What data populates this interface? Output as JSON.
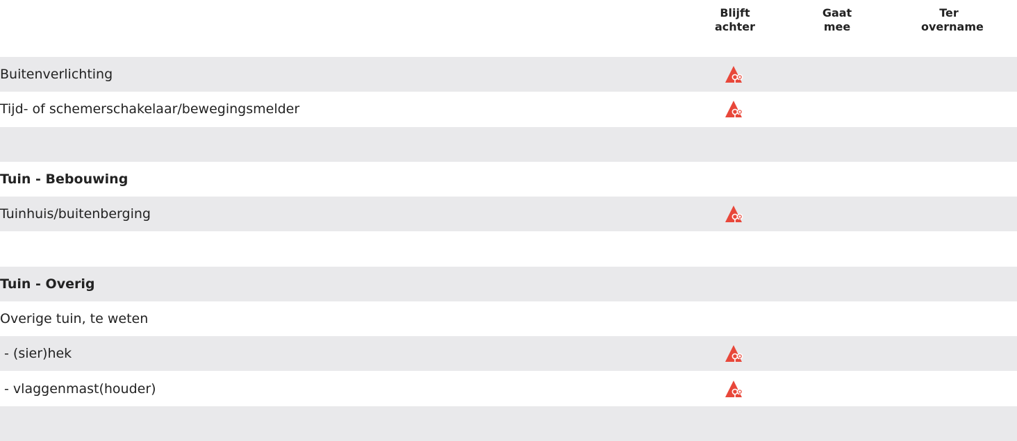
{
  "table": {
    "columns": [
      "Blijft achter",
      "Gaat mee",
      "Ter overname"
    ],
    "rows": [
      {
        "label": "Buitenverlichting",
        "heading": false,
        "checked": [
          true,
          false,
          false
        ]
      },
      {
        "label": "Tijd- of schemerschakelaar/bewegingsmelder",
        "heading": false,
        "checked": [
          true,
          false,
          false
        ]
      },
      {
        "label": null,
        "heading": false,
        "checked": [
          false,
          false,
          false
        ]
      },
      {
        "label": "Tuin - Bebouwing",
        "heading": true,
        "checked": [
          false,
          false,
          false
        ]
      },
      {
        "label": "Tuinhuis/buitenberging",
        "heading": false,
        "checked": [
          true,
          false,
          false
        ]
      },
      {
        "label": null,
        "heading": false,
        "checked": [
          false,
          false,
          false
        ]
      },
      {
        "label": "Tuin - Overig",
        "heading": true,
        "checked": [
          false,
          false,
          false
        ]
      },
      {
        "label": "Overige tuin, te weten",
        "heading": false,
        "checked": [
          false,
          false,
          false
        ]
      },
      {
        "label": " - (sier)hek",
        "heading": false,
        "checked": [
          true,
          false,
          false
        ]
      },
      {
        "label": " - vlaggenmast(houder)",
        "heading": false,
        "checked": [
          true,
          false,
          false
        ]
      },
      {
        "label": null,
        "heading": false,
        "checked": [
          false,
          false,
          false
        ]
      }
    ]
  }
}
